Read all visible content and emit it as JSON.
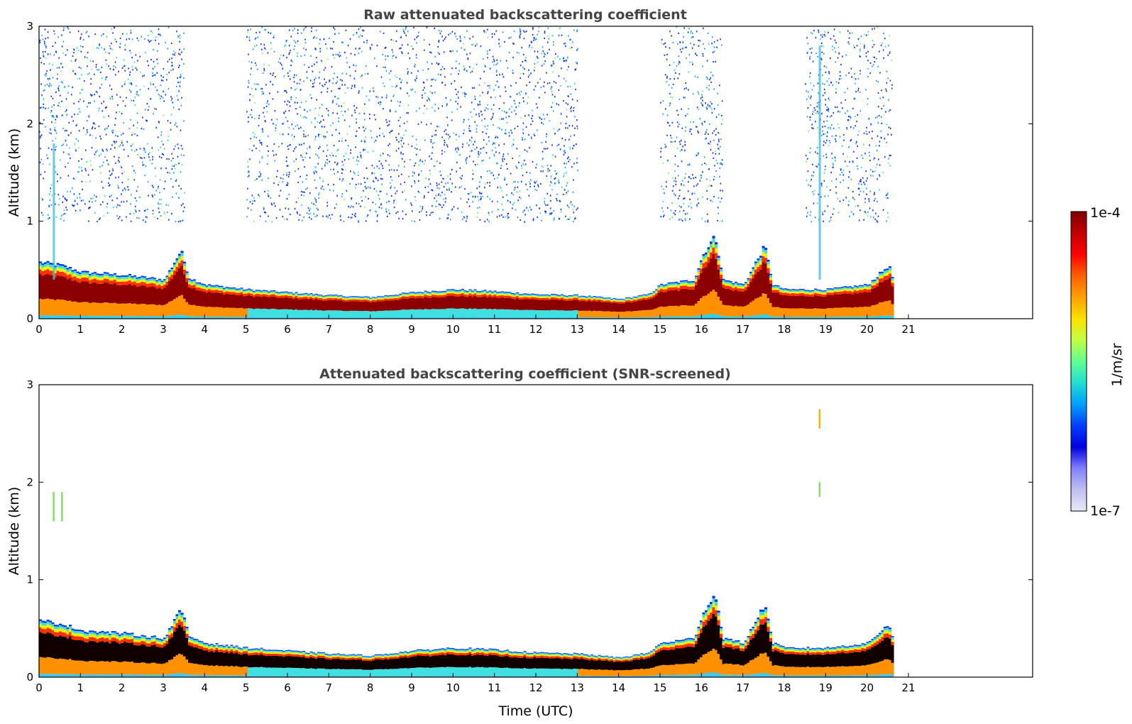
{
  "chart_data": [
    {
      "type": "heatmap",
      "title": "Raw attenuated backscattering coefficient",
      "xlabel": "",
      "ylabel": "Altitude (km)",
      "xlim": [
        0,
        24
      ],
      "ylim": [
        0,
        3
      ],
      "x_ticks": [
        "0",
        "1",
        "2",
        "3",
        "4",
        "5",
        "6",
        "7",
        "8",
        "9",
        "10",
        "11",
        "12",
        "13",
        "14",
        "15",
        "16",
        "17",
        "18",
        "19",
        "20",
        "21"
      ],
      "y_ticks": [
        "0",
        "1",
        "2",
        "3"
      ],
      "data_end_hour": 20.6,
      "layer_top_km": [
        [
          0,
          0.58
        ],
        [
          0.5,
          0.55
        ],
        [
          1,
          0.48
        ],
        [
          2,
          0.45
        ],
        [
          3,
          0.4
        ],
        [
          3.4,
          0.7
        ],
        [
          3.6,
          0.42
        ],
        [
          4,
          0.35
        ],
        [
          5,
          0.3
        ],
        [
          6,
          0.27
        ],
        [
          7,
          0.24
        ],
        [
          8,
          0.22
        ],
        [
          9,
          0.27
        ],
        [
          10,
          0.3
        ],
        [
          11,
          0.28
        ],
        [
          12,
          0.25
        ],
        [
          13,
          0.24
        ],
        [
          14,
          0.2
        ],
        [
          14.7,
          0.25
        ],
        [
          15,
          0.35
        ],
        [
          15.8,
          0.4
        ],
        [
          16,
          0.65
        ],
        [
          16.3,
          0.85
        ],
        [
          16.5,
          0.4
        ],
        [
          17,
          0.35
        ],
        [
          17.5,
          0.75
        ],
        [
          17.7,
          0.35
        ],
        [
          18,
          0.3
        ],
        [
          19,
          0.3
        ],
        [
          20,
          0.35
        ],
        [
          20.5,
          0.55
        ],
        [
          20.6,
          0.4
        ]
      ],
      "noise_region_km": [
        1.0,
        3.0
      ],
      "noise_hours": [
        [
          0,
          3.5
        ],
        [
          5,
          13
        ],
        [
          15,
          16.5
        ],
        [
          18.5,
          20.6
        ]
      ],
      "spikes": [
        {
          "hour": 0.35,
          "top_km": 1.8
        },
        {
          "hour": 18.85,
          "top_km": 2.8
        }
      ]
    },
    {
      "type": "heatmap",
      "title": "Attenuated backscattering coefficient (SNR-screened)",
      "xlabel": "Time (UTC)",
      "ylabel": "Altitude (km)",
      "xlim": [
        0,
        24
      ],
      "ylim": [
        0,
        3
      ],
      "x_ticks": [
        "0",
        "1",
        "2",
        "3",
        "4",
        "5",
        "6",
        "7",
        "8",
        "9",
        "10",
        "11",
        "12",
        "13",
        "14",
        "15",
        "16",
        "17",
        "18",
        "19",
        "20",
        "21"
      ],
      "y_ticks": [
        "0",
        "1",
        "2",
        "3"
      ],
      "data_end_hour": 20.6,
      "isolated_returns": [
        {
          "hour": 0.35,
          "from_km": 1.6,
          "to_km": 1.9
        },
        {
          "hour": 0.55,
          "from_km": 1.6,
          "to_km": 1.9
        },
        {
          "hour": 18.85,
          "from_km": 1.85,
          "to_km": 2.0
        },
        {
          "hour": 18.85,
          "from_km": 2.55,
          "to_km": 2.75
        }
      ]
    }
  ],
  "colorbar": {
    "label": "1/m/sr",
    "max_label": "1e-4",
    "min_label": "1e-7",
    "colors": [
      "#800000",
      "#c00000",
      "#ff0000",
      "#ff6000",
      "#ffa000",
      "#ffe000",
      "#c0ff40",
      "#60ff90",
      "#20e0d0",
      "#00a0ff",
      "#0040ff",
      "#0000e0",
      "#8080ff",
      "#c0c0f0",
      "#e8e8f8"
    ]
  }
}
